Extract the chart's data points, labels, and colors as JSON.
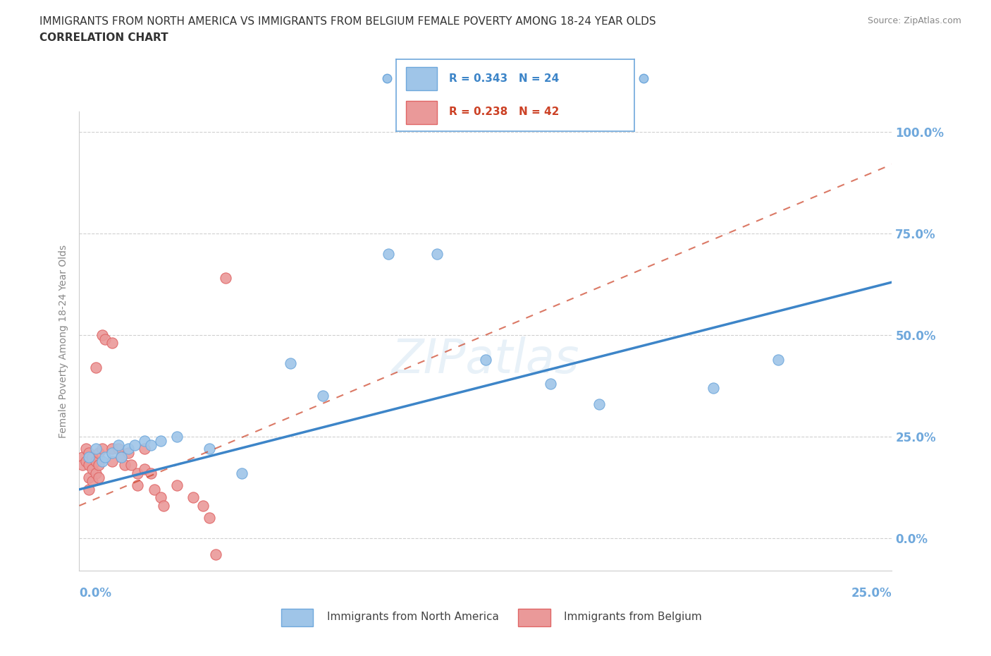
{
  "title_line1": "IMMIGRANTS FROM NORTH AMERICA VS IMMIGRANTS FROM BELGIUM FEMALE POVERTY AMONG 18-24 YEAR OLDS",
  "title_line2": "CORRELATION CHART",
  "source": "Source: ZipAtlas.com",
  "ylabel": "Female Poverty Among 18-24 Year Olds",
  "xlim": [
    0.0,
    0.25
  ],
  "ylim": [
    -0.08,
    1.05
  ],
  "yticks": [
    0.0,
    0.25,
    0.5,
    0.75,
    1.0
  ],
  "ytick_labels": [
    "0.0%",
    "25.0%",
    "50.0%",
    "75.0%",
    "100.0%"
  ],
  "xtick_labels_left": "0.0%",
  "xtick_labels_right": "25.0%",
  "blue_color": "#9fc5e8",
  "pink_color": "#ea9999",
  "blue_edge_color": "#6fa8dc",
  "pink_edge_color": "#e06666",
  "blue_line_color": "#3d85c8",
  "pink_line_color": "#cc4125",
  "legend_blue_R": "R = 0.343",
  "legend_blue_N": "N = 24",
  "legend_pink_R": "R = 0.238",
  "legend_pink_N": "N = 42",
  "watermark": "ZIPatlas",
  "north_america_points": [
    [
      0.003,
      0.2
    ],
    [
      0.005,
      0.22
    ],
    [
      0.007,
      0.19
    ],
    [
      0.008,
      0.2
    ],
    [
      0.01,
      0.21
    ],
    [
      0.012,
      0.23
    ],
    [
      0.013,
      0.2
    ],
    [
      0.015,
      0.22
    ],
    [
      0.017,
      0.23
    ],
    [
      0.02,
      0.24
    ],
    [
      0.022,
      0.23
    ],
    [
      0.025,
      0.24
    ],
    [
      0.03,
      0.25
    ],
    [
      0.04,
      0.22
    ],
    [
      0.05,
      0.16
    ],
    [
      0.065,
      0.43
    ],
    [
      0.075,
      0.35
    ],
    [
      0.095,
      0.7
    ],
    [
      0.11,
      0.7
    ],
    [
      0.125,
      0.44
    ],
    [
      0.145,
      0.38
    ],
    [
      0.16,
      0.33
    ],
    [
      0.195,
      0.37
    ],
    [
      0.215,
      0.44
    ]
  ],
  "belgium_points": [
    [
      0.001,
      0.2
    ],
    [
      0.001,
      0.18
    ],
    [
      0.002,
      0.22
    ],
    [
      0.002,
      0.19
    ],
    [
      0.003,
      0.21
    ],
    [
      0.003,
      0.18
    ],
    [
      0.003,
      0.15
    ],
    [
      0.003,
      0.12
    ],
    [
      0.004,
      0.2
    ],
    [
      0.004,
      0.17
    ],
    [
      0.004,
      0.14
    ],
    [
      0.005,
      0.42
    ],
    [
      0.005,
      0.19
    ],
    [
      0.005,
      0.16
    ],
    [
      0.006,
      0.21
    ],
    [
      0.006,
      0.18
    ],
    [
      0.006,
      0.15
    ],
    [
      0.007,
      0.5
    ],
    [
      0.007,
      0.22
    ],
    [
      0.008,
      0.49
    ],
    [
      0.01,
      0.48
    ],
    [
      0.01,
      0.22
    ],
    [
      0.01,
      0.19
    ],
    [
      0.012,
      0.22
    ],
    [
      0.013,
      0.2
    ],
    [
      0.014,
      0.18
    ],
    [
      0.015,
      0.21
    ],
    [
      0.016,
      0.18
    ],
    [
      0.018,
      0.16
    ],
    [
      0.018,
      0.13
    ],
    [
      0.02,
      0.22
    ],
    [
      0.02,
      0.17
    ],
    [
      0.022,
      0.16
    ],
    [
      0.023,
      0.12
    ],
    [
      0.025,
      0.1
    ],
    [
      0.026,
      0.08
    ],
    [
      0.03,
      0.13
    ],
    [
      0.035,
      0.1
    ],
    [
      0.038,
      0.08
    ],
    [
      0.04,
      0.05
    ],
    [
      0.042,
      -0.04
    ],
    [
      0.045,
      0.64
    ]
  ],
  "blue_trendline": [
    [
      0.0,
      0.12
    ],
    [
      0.25,
      0.63
    ]
  ],
  "pink_trendline": [
    [
      0.0,
      0.08
    ],
    [
      0.25,
      0.92
    ]
  ],
  "background_color": "#ffffff",
  "grid_color": "#d0d0d0",
  "title_color": "#333333",
  "label_color": "#888888",
  "tick_color": "#6fa8dc"
}
